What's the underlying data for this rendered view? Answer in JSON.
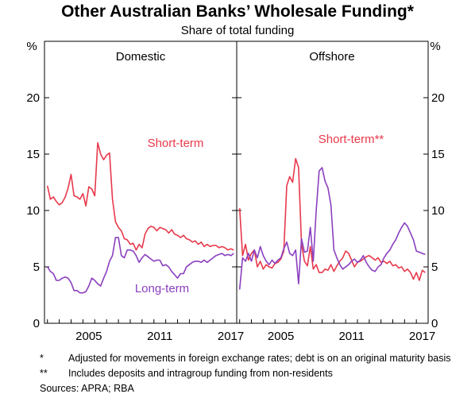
{
  "chart_data": {
    "type": "line",
    "title": "Other Australian Banks’ Wholesale Funding*",
    "subtitle": "Share of total funding",
    "unit_left": "%",
    "unit_right": "%",
    "ylim": [
      0,
      25
    ],
    "yticks": [
      0,
      5,
      10,
      15,
      20
    ],
    "grid": false,
    "panels": [
      {
        "name": "Domestic",
        "xlim": [
          2001.75,
          2018.0
        ],
        "xticks": [
          2005,
          2011,
          2017
        ],
        "series": [
          {
            "name": "Short-term",
            "color": "#e8394b",
            "x": [
              2002.0,
              2002.25,
              2002.5,
              2002.75,
              2003.0,
              2003.25,
              2003.5,
              2003.75,
              2004.0,
              2004.25,
              2004.5,
              2004.75,
              2005.0,
              2005.25,
              2005.5,
              2005.75,
              2006.0,
              2006.25,
              2006.5,
              2006.75,
              2007.0,
              2007.25,
              2007.5,
              2007.75,
              2008.0,
              2008.25,
              2008.5,
              2008.75,
              2009.0,
              2009.25,
              2009.5,
              2009.75,
              2010.0,
              2010.25,
              2010.5,
              2010.75,
              2011.0,
              2011.25,
              2011.5,
              2011.75,
              2012.0,
              2012.25,
              2012.5,
              2012.75,
              2013.0,
              2013.25,
              2013.5,
              2013.75,
              2014.0,
              2014.25,
              2014.5,
              2014.75,
              2015.0,
              2015.25,
              2015.5,
              2015.75,
              2016.0,
              2016.25,
              2016.5,
              2016.75,
              2017.0,
              2017.25,
              2017.5,
              2017.75
            ],
            "values": [
              12.2,
              11.0,
              11.2,
              10.8,
              10.5,
              10.7,
              11.2,
              12.0,
              13.2,
              11.3,
              11.2,
              11.0,
              11.5,
              10.4,
              12.1,
              11.9,
              11.3,
              16.0,
              15.0,
              14.5,
              14.9,
              15.1,
              11.0,
              9.0,
              8.5,
              8.2,
              7.5,
              7.4,
              7.0,
              7.1,
              6.5,
              7.0,
              6.7,
              7.9,
              8.4,
              8.6,
              8.5,
              8.2,
              8.5,
              8.4,
              8.3,
              8.0,
              8.3,
              7.9,
              7.8,
              7.6,
              7.8,
              7.5,
              7.4,
              7.2,
              7.3,
              7.0,
              7.2,
              6.8,
              7.0,
              6.8,
              6.9,
              6.9,
              6.7,
              6.8,
              6.7,
              6.5,
              6.6,
              6.5
            ]
          },
          {
            "name": "Long-term",
            "color": "#8a3fbf",
            "x": [
              2002.0,
              2002.25,
              2002.5,
              2002.75,
              2003.0,
              2003.25,
              2003.5,
              2003.75,
              2004.0,
              2004.25,
              2004.5,
              2004.75,
              2005.0,
              2005.25,
              2005.5,
              2005.75,
              2006.0,
              2006.25,
              2006.5,
              2006.75,
              2007.0,
              2007.25,
              2007.5,
              2007.75,
              2008.0,
              2008.25,
              2008.5,
              2008.75,
              2009.0,
              2009.25,
              2009.5,
              2009.75,
              2010.0,
              2010.25,
              2010.5,
              2010.75,
              2011.0,
              2011.25,
              2011.5,
              2011.75,
              2012.0,
              2012.25,
              2012.5,
              2012.75,
              2013.0,
              2013.25,
              2013.5,
              2013.75,
              2014.0,
              2014.25,
              2014.5,
              2014.75,
              2015.0,
              2015.25,
              2015.5,
              2015.75,
              2016.0,
              2016.25,
              2016.5,
              2016.75,
              2017.0,
              2017.25,
              2017.5,
              2017.75
            ],
            "values": [
              5.0,
              4.6,
              4.4,
              3.8,
              3.8,
              4.0,
              4.1,
              4.0,
              3.6,
              2.9,
              2.9,
              2.7,
              2.7,
              2.8,
              3.3,
              4.0,
              3.8,
              3.5,
              3.3,
              4.0,
              4.6,
              5.5,
              6.0,
              7.6,
              7.6,
              6.0,
              5.8,
              6.5,
              6.5,
              6.4,
              6.0,
              5.4,
              5.8,
              6.1,
              5.9,
              5.7,
              5.5,
              5.6,
              5.6,
              5.1,
              5.2,
              5.0,
              4.6,
              4.3,
              4.0,
              4.4,
              4.4,
              5.0,
              5.2,
              5.4,
              5.5,
              5.5,
              5.4,
              5.6,
              5.4,
              5.6,
              5.8,
              6.0,
              6.1,
              6.2,
              6.0,
              6.1,
              6.0,
              6.2
            ]
          }
        ],
        "annotations": [
          {
            "text": "Short-term",
            "series": "Short-term"
          },
          {
            "text": "Long-term",
            "series": "Long-term"
          }
        ]
      },
      {
        "name": "Offshore",
        "xlim": [
          2001.75,
          2018.0
        ],
        "xticks": [
          2005,
          2011,
          2017
        ],
        "series": [
          {
            "name": "Short-term**",
            "color": "#e8394b",
            "x": [
              2002.0,
              2002.25,
              2002.5,
              2002.75,
              2003.0,
              2003.25,
              2003.5,
              2003.75,
              2004.0,
              2004.25,
              2004.5,
              2004.75,
              2005.0,
              2005.25,
              2005.5,
              2005.75,
              2006.0,
              2006.25,
              2006.5,
              2006.75,
              2007.0,
              2007.25,
              2007.5,
              2007.75,
              2008.0,
              2008.25,
              2008.5,
              2008.75,
              2009.0,
              2009.25,
              2009.5,
              2009.75,
              2010.0,
              2010.25,
              2010.5,
              2010.75,
              2011.0,
              2011.25,
              2011.5,
              2011.75,
              2012.0,
              2012.25,
              2012.5,
              2012.75,
              2013.0,
              2013.25,
              2013.5,
              2013.75,
              2014.0,
              2014.25,
              2014.5,
              2014.75,
              2015.0,
              2015.25,
              2015.5,
              2015.75,
              2016.0,
              2016.25,
              2016.5,
              2016.75,
              2017.0,
              2017.25,
              2017.5,
              2017.75
            ],
            "values": [
              10.2,
              6.0,
              7.0,
              5.6,
              6.2,
              6.5,
              5.0,
              5.5,
              4.8,
              5.2,
              5.0,
              4.9,
              5.3,
              5.4,
              5.7,
              6.4,
              12.2,
              13.0,
              12.5,
              14.6,
              13.8,
              7.0,
              5.5,
              5.1,
              6.8,
              4.8,
              5.2,
              4.5,
              4.5,
              4.8,
              4.7,
              5.2,
              4.6,
              5.1,
              5.5,
              5.8,
              6.4,
              6.2,
              5.6,
              5.0,
              5.4,
              5.5,
              5.7,
              5.9,
              6.0,
              5.8,
              5.6,
              5.8,
              5.4,
              5.5,
              5.3,
              5.5,
              5.1,
              5.2,
              4.9,
              5.0,
              4.6,
              4.8,
              4.5,
              3.9,
              4.5,
              3.8,
              4.7,
              4.5
            ]
          },
          {
            "name": "Long-term",
            "color": "#8a3fbf",
            "x": [
              2002.0,
              2002.25,
              2002.5,
              2002.75,
              2003.0,
              2003.25,
              2003.5,
              2003.75,
              2004.0,
              2004.25,
              2004.5,
              2004.75,
              2005.0,
              2005.25,
              2005.5,
              2005.75,
              2006.0,
              2006.25,
              2006.5,
              2006.75,
              2007.0,
              2007.25,
              2007.5,
              2007.75,
              2008.0,
              2008.25,
              2008.5,
              2008.75,
              2009.0,
              2009.25,
              2009.5,
              2009.75,
              2010.0,
              2010.25,
              2010.5,
              2010.75,
              2011.0,
              2011.25,
              2011.5,
              2011.75,
              2012.0,
              2012.25,
              2012.5,
              2012.75,
              2013.0,
              2013.25,
              2013.5,
              2013.75,
              2014.0,
              2014.25,
              2014.5,
              2014.75,
              2015.0,
              2015.25,
              2015.5,
              2015.75,
              2016.0,
              2016.25,
              2016.5,
              2016.75,
              2017.0,
              2017.25,
              2017.5,
              2017.75
            ],
            "values": [
              3.0,
              5.8,
              5.5,
              6.2,
              5.5,
              6.5,
              5.8,
              6.8,
              6.0,
              5.5,
              5.2,
              5.6,
              5.3,
              5.6,
              5.8,
              6.6,
              7.2,
              6.2,
              6.0,
              6.5,
              3.5,
              7.5,
              6.3,
              6.4,
              8.5,
              5.5,
              10.0,
              13.5,
              13.8,
              12.6,
              12.0,
              10.5,
              6.5,
              5.8,
              5.2,
              4.8,
              5.0,
              5.2,
              5.5,
              5.7,
              5.4,
              5.6,
              6.0,
              5.4,
              5.0,
              4.7,
              4.6,
              5.0,
              5.2,
              5.8,
              6.2,
              6.5,
              7.0,
              7.4,
              8.0,
              8.5,
              8.9,
              8.6,
              8.0,
              7.4,
              6.4,
              6.3,
              6.2,
              6.1
            ]
          }
        ],
        "annotations": [
          {
            "text": "Short-term**",
            "series": "Short-term**"
          }
        ]
      }
    ]
  },
  "notes": [
    {
      "mark": "*",
      "text": "Adjusted for movements in foreign exchange rates; debt is on an original maturity basis"
    },
    {
      "mark": "**",
      "text": "Includes deposits and intragroup funding from non-residents"
    }
  ],
  "sources": "Sources:   APRA; RBA"
}
